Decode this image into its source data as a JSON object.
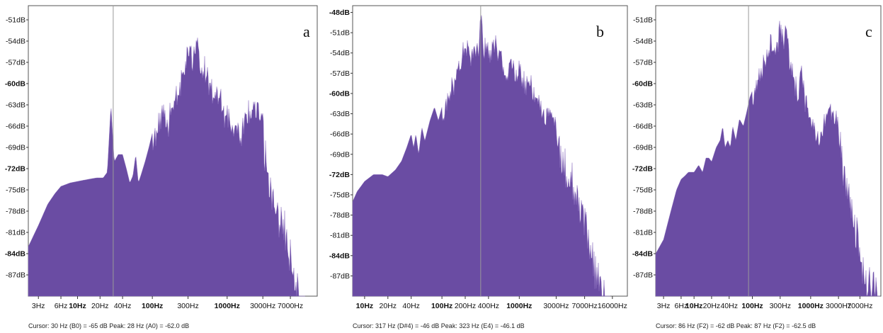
{
  "colors": {
    "fill": "#6a4ca3",
    "fill_light": "#8b6fc0",
    "cursor": "#9a9a9a",
    "frame": "#555555"
  },
  "chart_data": [
    {
      "type": "area",
      "panel_label": "a",
      "x_scale": "log",
      "xlim": [
        2.2,
        16000
      ],
      "ylim": [
        -90,
        -49
      ],
      "y_ticks": [
        {
          "value": -51,
          "label": "-51dB",
          "bold": false
        },
        {
          "value": -54,
          "label": "-54dB",
          "bold": false
        },
        {
          "value": -57,
          "label": "-57dB",
          "bold": false
        },
        {
          "value": -60,
          "label": "-60dB",
          "bold": true
        },
        {
          "value": -63,
          "label": "-63dB",
          "bold": false
        },
        {
          "value": -66,
          "label": "-66dB",
          "bold": false
        },
        {
          "value": -69,
          "label": "-69dB",
          "bold": false
        },
        {
          "value": -72,
          "label": "-72dB",
          "bold": true
        },
        {
          "value": -75,
          "label": "-75dB",
          "bold": false
        },
        {
          "value": -78,
          "label": "-78dB",
          "bold": false
        },
        {
          "value": -81,
          "label": "-81dB",
          "bold": false
        },
        {
          "value": -84,
          "label": "-84dB",
          "bold": true
        },
        {
          "value": -87,
          "label": "-87dB",
          "bold": false
        }
      ],
      "x_ticks": [
        {
          "value": 3,
          "label": "3Hz",
          "bold": false
        },
        {
          "value": 6,
          "label": "6Hz",
          "bold": false
        },
        {
          "value": 10,
          "label": "10Hz",
          "bold": true
        },
        {
          "value": 20,
          "label": "20Hz",
          "bold": false
        },
        {
          "value": 40,
          "label": "40Hz",
          "bold": false
        },
        {
          "value": 100,
          "label": "100Hz",
          "bold": true
        },
        {
          "value": 300,
          "label": "300Hz",
          "bold": false
        },
        {
          "value": 1000,
          "label": "1000Hz",
          "bold": true
        },
        {
          "value": 3000,
          "label": "3000Hz",
          "bold": false
        },
        {
          "value": 7000,
          "label": "7000Hz",
          "bold": false
        }
      ],
      "cursor_hz": 30,
      "spectrum": [
        [
          2.2,
          -83
        ],
        [
          3,
          -80
        ],
        [
          4,
          -77
        ],
        [
          5,
          -75.5
        ],
        [
          6,
          -74.5
        ],
        [
          8,
          -74
        ],
        [
          10,
          -73.8
        ],
        [
          14,
          -73.5
        ],
        [
          18,
          -73.3
        ],
        [
          22,
          -73.3
        ],
        [
          25,
          -72.5
        ],
        [
          27,
          -66
        ],
        [
          28,
          -63
        ],
        [
          29,
          -66
        ],
        [
          31,
          -71
        ],
        [
          35,
          -70
        ],
        [
          40,
          -70
        ],
        [
          45,
          -72
        ],
        [
          50,
          -74
        ],
        [
          55,
          -73
        ],
        [
          60,
          -70
        ],
        [
          65,
          -74
        ],
        [
          70,
          -73
        ],
        [
          80,
          -71
        ],
        [
          90,
          -69
        ],
        [
          100,
          -67
        ],
        [
          110,
          -66
        ],
        [
          120,
          -64
        ],
        [
          140,
          -62
        ],
        [
          160,
          -65
        ],
        [
          180,
          -61
        ],
        [
          200,
          -60
        ],
        [
          230,
          -59
        ],
        [
          270,
          -56
        ],
        [
          300,
          -54
        ],
        [
          350,
          -55
        ],
        [
          400,
          -53
        ],
        [
          450,
          -56
        ],
        [
          500,
          -56
        ],
        [
          600,
          -59
        ],
        [
          700,
          -60
        ],
        [
          800,
          -59
        ],
        [
          900,
          -63
        ],
        [
          1000,
          -63
        ],
        [
          1200,
          -64
        ],
        [
          1500,
          -66
        ],
        [
          1800,
          -63
        ],
        [
          2000,
          -62
        ],
        [
          2500,
          -62
        ],
        [
          3000,
          -64
        ],
        [
          3500,
          -70
        ],
        [
          4000,
          -73
        ],
        [
          4500,
          -74
        ],
        [
          5000,
          -76
        ],
        [
          6000,
          -78
        ],
        [
          7000,
          -81
        ],
        [
          8000,
          -84
        ],
        [
          9000,
          -87
        ],
        [
          10000,
          -88
        ],
        [
          11000,
          -90
        ]
      ],
      "status": "Cursor: 30 Hz (B0) = -65 dB    Peak: 28 Hz (A0) = -62.0 dB"
    },
    {
      "type": "area",
      "panel_label": "b",
      "x_scale": "log",
      "xlim": [
        7,
        25000
      ],
      "ylim": [
        -90,
        -47
      ],
      "y_ticks": [
        {
          "value": -48,
          "label": "-48dB",
          "bold": true
        },
        {
          "value": -51,
          "label": "-51dB",
          "bold": false
        },
        {
          "value": -54,
          "label": "-54dB",
          "bold": false
        },
        {
          "value": -57,
          "label": "-57dB",
          "bold": false
        },
        {
          "value": -60,
          "label": "-60dB",
          "bold": true
        },
        {
          "value": -63,
          "label": "-63dB",
          "bold": false
        },
        {
          "value": -66,
          "label": "-66dB",
          "bold": false
        },
        {
          "value": -69,
          "label": "-69dB",
          "bold": false
        },
        {
          "value": -72,
          "label": "-72dB",
          "bold": true
        },
        {
          "value": -75,
          "label": "-75dB",
          "bold": false
        },
        {
          "value": -78,
          "label": "-78dB",
          "bold": false
        },
        {
          "value": -81,
          "label": "-81dB",
          "bold": false
        },
        {
          "value": -84,
          "label": "-84dB",
          "bold": true
        },
        {
          "value": -87,
          "label": "-87dB",
          "bold": false
        }
      ],
      "x_ticks": [
        {
          "value": 10,
          "label": "10Hz",
          "bold": true
        },
        {
          "value": 20,
          "label": "20Hz",
          "bold": false
        },
        {
          "value": 40,
          "label": "40Hz",
          "bold": false
        },
        {
          "value": 100,
          "label": "100Hz",
          "bold": true
        },
        {
          "value": 200,
          "label": "200Hz",
          "bold": false
        },
        {
          "value": 400,
          "label": "400Hz",
          "bold": false
        },
        {
          "value": 1000,
          "label": "1000Hz",
          "bold": true
        },
        {
          "value": 3000,
          "label": "3000Hz",
          "bold": false
        },
        {
          "value": 7000,
          "label": "7000Hz",
          "bold": false
        },
        {
          "value": 16000,
          "label": "16000Hz",
          "bold": false
        }
      ],
      "cursor_hz": 317,
      "spectrum": [
        [
          7,
          -76
        ],
        [
          8,
          -74.5
        ],
        [
          10,
          -73
        ],
        [
          13,
          -72
        ],
        [
          17,
          -72
        ],
        [
          20,
          -72.3
        ],
        [
          25,
          -71.3
        ],
        [
          30,
          -70
        ],
        [
          35,
          -68
        ],
        [
          40,
          -66
        ],
        [
          43,
          -68
        ],
        [
          46,
          -66
        ],
        [
          50,
          -69
        ],
        [
          55,
          -65
        ],
        [
          60,
          -67
        ],
        [
          70,
          -64
        ],
        [
          80,
          -62
        ],
        [
          90,
          -64
        ],
        [
          100,
          -62
        ],
        [
          120,
          -59
        ],
        [
          140,
          -57
        ],
        [
          160,
          -55
        ],
        [
          180,
          -53
        ],
        [
          200,
          -51
        ],
        [
          230,
          -53
        ],
        [
          260,
          -52
        ],
        [
          300,
          -51
        ],
        [
          320,
          -47.5
        ],
        [
          340,
          -51
        ],
        [
          380,
          -52
        ],
        [
          420,
          -53
        ],
        [
          500,
          -51
        ],
        [
          600,
          -54
        ],
        [
          700,
          -56
        ],
        [
          800,
          -54
        ],
        [
          900,
          -56
        ],
        [
          1000,
          -55
        ],
        [
          1200,
          -57
        ],
        [
          1400,
          -57
        ],
        [
          1700,
          -59
        ],
        [
          2000,
          -61
        ],
        [
          2500,
          -62
        ],
        [
          3000,
          -63
        ],
        [
          3500,
          -66
        ],
        [
          4000,
          -68
        ],
        [
          5000,
          -70
        ],
        [
          6000,
          -73
        ],
        [
          7000,
          -76
        ],
        [
          8000,
          -80
        ],
        [
          10000,
          -84
        ],
        [
          12000,
          -87
        ],
        [
          14000,
          -89
        ],
        [
          15000,
          -90
        ]
      ],
      "status": "Cursor: 317 Hz (D#4) = -46 dB    Peak: 323 Hz (E4) = -46.1 dB"
    },
    {
      "type": "area",
      "panel_label": "c",
      "x_scale": "log",
      "xlim": [
        2.2,
        16000
      ],
      "ylim": [
        -90,
        -49
      ],
      "y_ticks": [
        {
          "value": -51,
          "label": "-51dB",
          "bold": false
        },
        {
          "value": -54,
          "label": "-54dB",
          "bold": false
        },
        {
          "value": -57,
          "label": "-57dB",
          "bold": false
        },
        {
          "value": -60,
          "label": "-60dB",
          "bold": true
        },
        {
          "value": -63,
          "label": "-63dB",
          "bold": false
        },
        {
          "value": -66,
          "label": "-66dB",
          "bold": false
        },
        {
          "value": -69,
          "label": "-69dB",
          "bold": false
        },
        {
          "value": -72,
          "label": "-72dB",
          "bold": true
        },
        {
          "value": -75,
          "label": "-75dB",
          "bold": false
        },
        {
          "value": -78,
          "label": "-78dB",
          "bold": false
        },
        {
          "value": -81,
          "label": "-81dB",
          "bold": false
        },
        {
          "value": -84,
          "label": "-84dB",
          "bold": true
        },
        {
          "value": -87,
          "label": "-87dB",
          "bold": false
        }
      ],
      "x_ticks": [
        {
          "value": 3,
          "label": "3Hz",
          "bold": false
        },
        {
          "value": 6,
          "label": "6Hz",
          "bold": false
        },
        {
          "value": 10,
          "label": "10Hz",
          "bold": true
        },
        {
          "value": 20,
          "label": "20Hz",
          "bold": false
        },
        {
          "value": 40,
          "label": "40Hz",
          "bold": false
        },
        {
          "value": 100,
          "label": "100Hz",
          "bold": true
        },
        {
          "value": 300,
          "label": "300Hz",
          "bold": false
        },
        {
          "value": 1000,
          "label": "1000Hz",
          "bold": true
        },
        {
          "value": 3000,
          "label": "3000Hz",
          "bold": false
        },
        {
          "value": 7000,
          "label": "7000Hz",
          "bold": false
        }
      ],
      "cursor_hz": 86,
      "spectrum": [
        [
          2.2,
          -84
        ],
        [
          3,
          -82
        ],
        [
          4,
          -78
        ],
        [
          5,
          -75
        ],
        [
          6,
          -73.5
        ],
        [
          7,
          -73
        ],
        [
          8,
          -72.5
        ],
        [
          10,
          -72.5
        ],
        [
          12,
          -71.5
        ],
        [
          14,
          -72.5
        ],
        [
          16,
          -70.5
        ],
        [
          18,
          -70.5
        ],
        [
          20,
          -71
        ],
        [
          24,
          -69
        ],
        [
          28,
          -68
        ],
        [
          31,
          -66
        ],
        [
          34,
          -69
        ],
        [
          38,
          -68
        ],
        [
          42,
          -69
        ],
        [
          46,
          -66
        ],
        [
          52,
          -68
        ],
        [
          60,
          -65
        ],
        [
          70,
          -66
        ],
        [
          80,
          -64
        ],
        [
          90,
          -62
        ],
        [
          100,
          -61
        ],
        [
          120,
          -58
        ],
        [
          140,
          -57
        ],
        [
          160,
          -55
        ],
        [
          180,
          -53
        ],
        [
          200,
          -53
        ],
        [
          230,
          -52
        ],
        [
          270,
          -53
        ],
        [
          300,
          -50
        ],
        [
          340,
          -52
        ],
        [
          380,
          -51
        ],
        [
          430,
          -55
        ],
        [
          500,
          -57
        ],
        [
          600,
          -60
        ],
        [
          700,
          -57
        ],
        [
          800,
          -61
        ],
        [
          900,
          -62
        ],
        [
          1000,
          -63
        ],
        [
          1300,
          -66
        ],
        [
          1700,
          -64
        ],
        [
          2000,
          -62
        ],
        [
          2500,
          -63
        ],
        [
          3000,
          -64
        ],
        [
          3500,
          -68
        ],
        [
          4000,
          -72
        ],
        [
          5000,
          -75
        ],
        [
          6000,
          -78
        ],
        [
          7000,
          -80
        ],
        [
          8000,
          -83
        ],
        [
          10000,
          -85
        ],
        [
          12000,
          -86
        ],
        [
          14000,
          -88
        ],
        [
          15500,
          -90
        ]
      ],
      "status": "Cursor: 86 Hz (F2) = -62 dB    Peak: 87 Hz (F2) = -62.5 dB"
    }
  ]
}
